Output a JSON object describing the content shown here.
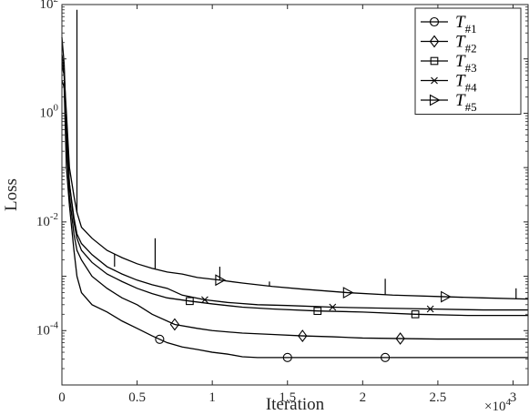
{
  "chart_data": {
    "type": "line",
    "xlabel": "Iteration",
    "ylabel": "Loss",
    "x_exponent_label": "×10",
    "x_exponent_power": "4",
    "xlim": [
      0,
      31000
    ],
    "ylim": [
      1e-05,
      100
    ],
    "yscale": "log",
    "grid": false,
    "legend_position": "top-right",
    "x_ticks": [
      0,
      5000,
      10000,
      15000,
      20000,
      25000,
      30000
    ],
    "x_tick_labels": [
      "0",
      "0.5",
      "1",
      "1.5",
      "2",
      "2.5",
      "3"
    ],
    "y_ticks": [
      0.0001,
      0.01,
      1,
      100
    ],
    "y_tick_bases": [
      "10",
      "10",
      "10",
      "10"
    ],
    "y_tick_powers": [
      "-4",
      "-2",
      "0",
      "2"
    ],
    "series": [
      {
        "name": "T",
        "subscript": "#1",
        "marker": "circle",
        "x": [
          0,
          150,
          300,
          500,
          800,
          1000,
          1300,
          2000,
          3000,
          4000,
          5000,
          6000,
          7000,
          8000,
          9000,
          10000,
          11000,
          12000,
          13000,
          15000,
          20000,
          25000,
          31000
        ],
        "y": [
          4,
          3,
          0.1,
          0.02,
          0.003,
          0.001,
          0.0005,
          0.0003,
          0.00022,
          0.00015,
          0.00011,
          8e-05,
          6e-05,
          5e-05,
          4.5e-05,
          4e-05,
          3.7e-05,
          3.3e-05,
          3.2e-05,
          3.2e-05,
          3.2e-05,
          3.2e-05,
          3.2e-05
        ],
        "markers_x": [
          6500,
          15000,
          21500
        ]
      },
      {
        "name": "T",
        "subscript": "#2",
        "marker": "diamond",
        "x": [
          0,
          150,
          300,
          500,
          800,
          1000,
          1300,
          2000,
          3000,
          4000,
          5000,
          6000,
          7500,
          9000,
          10000,
          12000,
          14000,
          16000,
          18000,
          20000,
          25000,
          31000
        ],
        "y": [
          10,
          5,
          0.3,
          0.03,
          0.006,
          0.003,
          0.002,
          0.001,
          0.0006,
          0.0004,
          0.0003,
          0.0002,
          0.00013,
          0.00011,
          0.0001,
          9e-05,
          8.5e-05,
          8e-05,
          7.7e-05,
          7.3e-05,
          7e-05,
          7e-05
        ],
        "markers_x": [
          7500,
          16000,
          22500
        ]
      },
      {
        "name": "T",
        "subscript": "#3",
        "marker": "square",
        "x": [
          0,
          150,
          300,
          500,
          800,
          1000,
          1300,
          2000,
          3000,
          4000,
          5000,
          6000,
          7000,
          8500,
          10000,
          12000,
          14000,
          17000,
          20000,
          23500,
          27000,
          31000
        ],
        "y": [
          25,
          8,
          0.5,
          0.05,
          0.01,
          0.005,
          0.003,
          0.0018,
          0.0011,
          0.0008,
          0.0006,
          0.00048,
          0.0004,
          0.00035,
          0.00031,
          0.00027,
          0.00025,
          0.00023,
          0.00022,
          0.0002,
          0.00019,
          0.00019
        ],
        "markers_x": [
          8500,
          17000,
          23500
        ]
      },
      {
        "name": "T",
        "subscript": "#4",
        "marker": "x",
        "x": [
          0,
          150,
          300,
          500,
          800,
          1000,
          1300,
          2000,
          3000,
          4000,
          5000,
          6000,
          7000,
          8000,
          9500,
          11000,
          13000,
          15000,
          18000,
          21000,
          24500,
          28000,
          31000
        ],
        "y": [
          12,
          6,
          0.4,
          0.05,
          0.012,
          0.006,
          0.004,
          0.0025,
          0.0015,
          0.0011,
          0.00085,
          0.0007,
          0.0006,
          0.00045,
          0.00037,
          0.00033,
          0.0003,
          0.00029,
          0.00027,
          0.00026,
          0.00025,
          0.00024,
          0.00024
        ],
        "markers_x": [
          9500,
          18000,
          24500
        ]
      },
      {
        "name": "T",
        "subscript": "#5",
        "marker": "triangle-right",
        "x": [
          0,
          150,
          300,
          500,
          800,
          1000,
          1300,
          2000,
          3000,
          4000,
          5000,
          6000,
          7000,
          8000,
          9000,
          10500,
          12000,
          14000,
          16000,
          19000,
          22000,
          25500,
          28000,
          31000
        ],
        "y": [
          8,
          5,
          1,
          0.1,
          0.03,
          0.015,
          0.008,
          0.005,
          0.003,
          0.0022,
          0.0017,
          0.0014,
          0.0012,
          0.0011,
          0.00095,
          0.00085,
          0.00075,
          0.00065,
          0.00058,
          0.0005,
          0.00045,
          0.00042,
          0.0004,
          0.00038
        ],
        "markers_x": [
          10500,
          19000,
          25500
        ]
      }
    ],
    "spikes": [
      {
        "x": 1000,
        "y": 80
      },
      {
        "x": 3500,
        "y": 0.0015
      },
      {
        "x": 6200,
        "y": 0.005
      },
      {
        "x": 10500,
        "y": 0.0015
      },
      {
        "x": 13800,
        "y": 0.0008
      },
      {
        "x": 21500,
        "y": 0.0009
      },
      {
        "x": 30200,
        "y": 0.0006
      }
    ]
  }
}
